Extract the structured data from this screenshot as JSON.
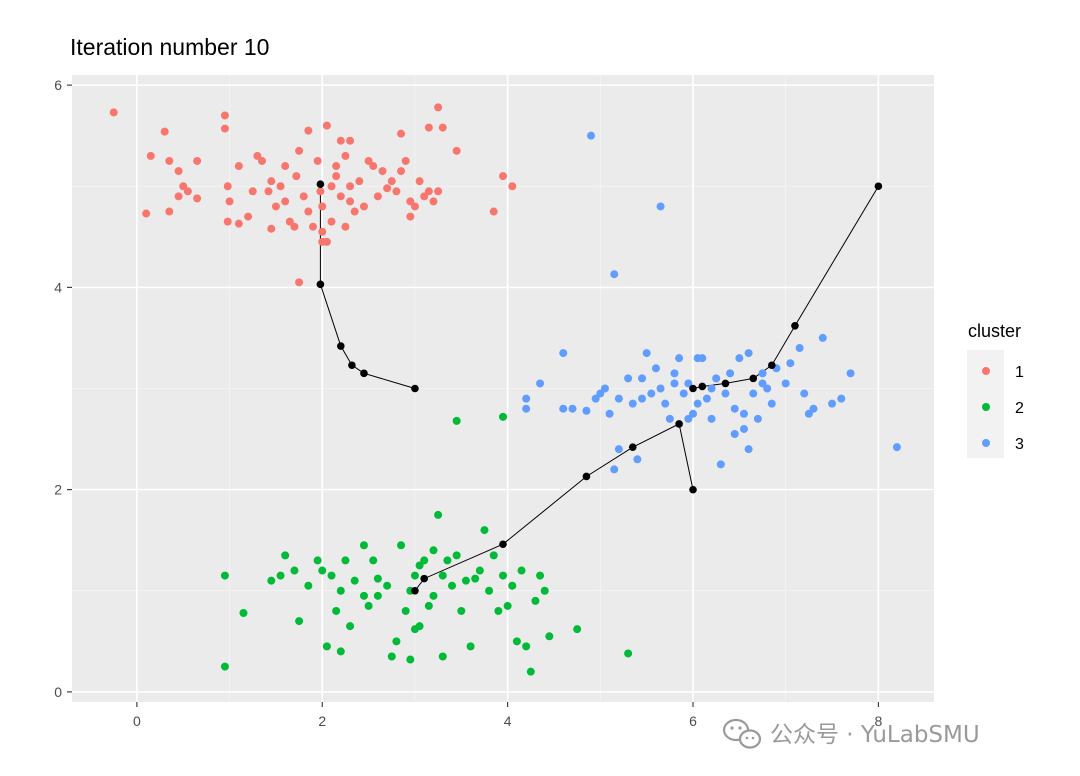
{
  "chart_data": {
    "type": "scatter",
    "title": "Iteration number 10",
    "xlabel": "",
    "ylabel": "",
    "xlim": [
      -0.7,
      8.6
    ],
    "ylim": [
      -0.1,
      6.1
    ],
    "xticks": [
      0,
      2,
      4,
      6,
      8
    ],
    "yticks": [
      0,
      2,
      4,
      6
    ],
    "xtick_labels": [
      "0",
      "2",
      "4",
      "6",
      "8"
    ],
    "ytick_labels": [
      "0",
      "2",
      "4",
      "6"
    ],
    "grid": true,
    "panel_background": "#ebebeb",
    "legend": {
      "title": "cluster",
      "position": "right",
      "entries": [
        {
          "label": "1",
          "color": "#F8766D"
        },
        {
          "label": "2",
          "color": "#00BA38"
        },
        {
          "label": "3",
          "color": "#619CFF"
        }
      ]
    },
    "series": [
      {
        "name": "1",
        "color": "#F8766D",
        "points": [
          [
            -0.25,
            5.73
          ],
          [
            0.95,
            5.7
          ],
          [
            0.95,
            5.57
          ],
          [
            0.3,
            5.54
          ],
          [
            1.85,
            5.55
          ],
          [
            2.05,
            5.6
          ],
          [
            3.25,
            5.78
          ],
          [
            3.3,
            5.58
          ],
          [
            3.15,
            5.58
          ],
          [
            2.85,
            5.52
          ],
          [
            0.15,
            5.3
          ],
          [
            0.35,
            5.25
          ],
          [
            0.45,
            5.15
          ],
          [
            0.65,
            5.25
          ],
          [
            0.5,
            5.0
          ],
          [
            0.45,
            4.9
          ],
          [
            0.35,
            4.75
          ],
          [
            0.1,
            4.73
          ],
          [
            0.65,
            4.88
          ],
          [
            0.55,
            4.95
          ],
          [
            0.98,
            5.0
          ],
          [
            1.0,
            4.85
          ],
          [
            0.98,
            4.65
          ],
          [
            1.1,
            5.2
          ],
          [
            1.25,
            4.95
          ],
          [
            1.2,
            4.7
          ],
          [
            1.1,
            4.63
          ],
          [
            1.3,
            5.3
          ],
          [
            1.35,
            5.25
          ],
          [
            1.45,
            5.05
          ],
          [
            1.42,
            4.95
          ],
          [
            1.5,
            4.8
          ],
          [
            1.45,
            4.58
          ],
          [
            1.6,
            5.2
          ],
          [
            1.55,
            5.0
          ],
          [
            1.6,
            4.85
          ],
          [
            1.65,
            4.65
          ],
          [
            1.7,
            4.6
          ],
          [
            1.75,
            5.35
          ],
          [
            1.72,
            5.1
          ],
          [
            1.8,
            4.9
          ],
          [
            1.85,
            4.75
          ],
          [
            1.9,
            4.6
          ],
          [
            1.95,
            5.25
          ],
          [
            1.98,
            4.95
          ],
          [
            2.0,
            4.8
          ],
          [
            2.0,
            4.45
          ],
          [
            2.05,
            4.45
          ],
          [
            2.1,
            4.65
          ],
          [
            2.1,
            5.0
          ],
          [
            2.15,
            5.1
          ],
          [
            2.2,
            5.45
          ],
          [
            2.15,
            5.2
          ],
          [
            2.2,
            4.9
          ],
          [
            2.25,
            5.3
          ],
          [
            2.3,
            5.0
          ],
          [
            2.3,
            4.85
          ],
          [
            2.35,
            4.75
          ],
          [
            2.25,
            4.6
          ],
          [
            2.4,
            5.05
          ],
          [
            2.45,
            4.8
          ],
          [
            2.5,
            5.25
          ],
          [
            2.55,
            5.2
          ],
          [
            2.6,
            4.9
          ],
          [
            2.65,
            5.15
          ],
          [
            2.75,
            5.05
          ],
          [
            2.8,
            4.95
          ],
          [
            2.85,
            5.15
          ],
          [
            2.9,
            5.25
          ],
          [
            2.95,
            4.7
          ],
          [
            3.0,
            4.8
          ],
          [
            3.05,
            5.05
          ],
          [
            3.1,
            4.9
          ],
          [
            3.15,
            4.95
          ],
          [
            3.2,
            4.85
          ],
          [
            3.25,
            4.95
          ],
          [
            3.45,
            5.35
          ],
          [
            3.85,
            4.75
          ],
          [
            3.95,
            5.1
          ],
          [
            4.05,
            5.0
          ],
          [
            1.75,
            4.05
          ],
          [
            2.0,
            4.55
          ],
          [
            2.3,
            5.45
          ],
          [
            2.7,
            4.98
          ],
          [
            2.95,
            4.85
          ]
        ]
      },
      {
        "name": "2",
        "color": "#00BA38",
        "points": [
          [
            0.95,
            0.25
          ],
          [
            0.95,
            1.15
          ],
          [
            1.15,
            0.78
          ],
          [
            1.45,
            1.1
          ],
          [
            1.55,
            1.15
          ],
          [
            1.6,
            1.35
          ],
          [
            1.7,
            1.2
          ],
          [
            1.75,
            0.7
          ],
          [
            1.85,
            1.05
          ],
          [
            1.95,
            1.3
          ],
          [
            2.0,
            1.2
          ],
          [
            2.05,
            0.45
          ],
          [
            2.1,
            1.15
          ],
          [
            2.15,
            0.8
          ],
          [
            2.2,
            1.0
          ],
          [
            2.2,
            0.4
          ],
          [
            2.25,
            1.3
          ],
          [
            2.3,
            0.65
          ],
          [
            2.35,
            1.1
          ],
          [
            2.45,
            1.45
          ],
          [
            2.45,
            0.95
          ],
          [
            2.5,
            0.85
          ],
          [
            2.55,
            1.3
          ],
          [
            2.6,
            0.95
          ],
          [
            2.7,
            1.05
          ],
          [
            2.75,
            0.35
          ],
          [
            2.8,
            0.5
          ],
          [
            2.85,
            1.45
          ],
          [
            2.9,
            0.8
          ],
          [
            2.95,
            1.0
          ],
          [
            3.0,
            1.15
          ],
          [
            3.05,
            0.65
          ],
          [
            3.1,
            1.3
          ],
          [
            3.15,
            0.85
          ],
          [
            3.2,
            1.4
          ],
          [
            3.2,
            0.95
          ],
          [
            3.25,
            1.75
          ],
          [
            3.3,
            1.15
          ],
          [
            3.35,
            1.3
          ],
          [
            3.4,
            1.05
          ],
          [
            3.45,
            1.35
          ],
          [
            3.5,
            0.8
          ],
          [
            3.55,
            1.1
          ],
          [
            3.6,
            0.45
          ],
          [
            3.7,
            1.2
          ],
          [
            3.75,
            1.6
          ],
          [
            3.8,
            1.0
          ],
          [
            3.85,
            1.35
          ],
          [
            3.9,
            0.8
          ],
          [
            3.95,
            1.15
          ],
          [
            4.0,
            0.85
          ],
          [
            4.05,
            1.05
          ],
          [
            4.1,
            0.5
          ],
          [
            4.15,
            1.2
          ],
          [
            4.2,
            0.45
          ],
          [
            4.25,
            0.2
          ],
          [
            4.3,
            0.9
          ],
          [
            4.35,
            1.15
          ],
          [
            4.4,
            1.0
          ],
          [
            4.45,
            0.55
          ],
          [
            4.75,
            0.62
          ],
          [
            5.3,
            0.38
          ],
          [
            3.3,
            0.35
          ],
          [
            3.0,
            0.62
          ],
          [
            2.95,
            0.32
          ],
          [
            3.45,
            2.68
          ],
          [
            3.95,
            2.72
          ],
          [
            3.05,
            1.25
          ],
          [
            2.6,
            1.12
          ],
          [
            3.65,
            1.12
          ]
        ]
      },
      {
        "name": "3",
        "color": "#619CFF",
        "points": [
          [
            4.9,
            5.5
          ],
          [
            5.65,
            4.8
          ],
          [
            5.15,
            4.13
          ],
          [
            4.2,
            2.9
          ],
          [
            4.2,
            2.8
          ],
          [
            4.35,
            3.05
          ],
          [
            4.6,
            3.35
          ],
          [
            4.6,
            2.8
          ],
          [
            4.7,
            2.8
          ],
          [
            4.85,
            2.78
          ],
          [
            4.95,
            2.9
          ],
          [
            5.05,
            3.0
          ],
          [
            5.1,
            2.75
          ],
          [
            5.15,
            2.2
          ],
          [
            5.2,
            2.9
          ],
          [
            5.3,
            3.1
          ],
          [
            5.35,
            2.85
          ],
          [
            5.4,
            2.3
          ],
          [
            5.45,
            2.9
          ],
          [
            5.5,
            3.35
          ],
          [
            5.55,
            2.95
          ],
          [
            5.6,
            3.2
          ],
          [
            5.65,
            3.0
          ],
          [
            5.7,
            2.85
          ],
          [
            5.75,
            2.7
          ],
          [
            5.8,
            3.15
          ],
          [
            5.85,
            3.3
          ],
          [
            5.9,
            2.95
          ],
          [
            5.95,
            3.05
          ],
          [
            6.0,
            2.75
          ],
          [
            6.05,
            2.85
          ],
          [
            6.1,
            3.3
          ],
          [
            6.15,
            2.9
          ],
          [
            6.2,
            2.7
          ],
          [
            6.25,
            3.1
          ],
          [
            6.3,
            2.25
          ],
          [
            6.35,
            2.95
          ],
          [
            6.4,
            3.15
          ],
          [
            6.45,
            2.8
          ],
          [
            6.5,
            3.3
          ],
          [
            6.55,
            2.6
          ],
          [
            6.6,
            3.35
          ],
          [
            6.65,
            2.95
          ],
          [
            6.7,
            2.7
          ],
          [
            6.75,
            3.15
          ],
          [
            6.8,
            3.0
          ],
          [
            6.85,
            2.85
          ],
          [
            6.9,
            3.2
          ],
          [
            7.0,
            3.05
          ],
          [
            7.05,
            3.25
          ],
          [
            7.15,
            3.4
          ],
          [
            7.2,
            2.95
          ],
          [
            7.25,
            2.75
          ],
          [
            7.3,
            2.8
          ],
          [
            7.4,
            3.5
          ],
          [
            7.5,
            2.85
          ],
          [
            7.6,
            2.9
          ],
          [
            7.7,
            3.15
          ],
          [
            8.2,
            2.42
          ],
          [
            5.2,
            2.4
          ],
          [
            6.6,
            2.4
          ],
          [
            6.55,
            2.75
          ],
          [
            5.95,
            2.7
          ],
          [
            6.45,
            2.55
          ],
          [
            5.45,
            3.1
          ],
          [
            6.75,
            3.05
          ],
          [
            5.0,
            2.95
          ],
          [
            6.05,
            3.3
          ],
          [
            6.2,
            3.0
          ],
          [
            5.8,
            3.05
          ]
        ]
      }
    ],
    "centroid_paths": [
      {
        "color": "#000000",
        "points": [
          [
            1.98,
            5.02
          ],
          [
            1.98,
            4.03
          ],
          [
            2.2,
            3.42
          ],
          [
            2.32,
            3.23
          ],
          [
            2.45,
            3.15
          ],
          [
            3.0,
            3.0
          ]
        ]
      },
      {
        "color": "#000000",
        "points": [
          [
            6.0,
            2.0
          ],
          [
            5.85,
            2.65
          ],
          [
            5.35,
            2.42
          ],
          [
            4.85,
            2.13
          ],
          [
            3.95,
            1.46
          ],
          [
            3.1,
            1.12
          ],
          [
            3.0,
            1.0
          ]
        ]
      },
      {
        "color": "#000000",
        "points": [
          [
            8.0,
            5.0
          ],
          [
            7.1,
            3.62
          ],
          [
            6.85,
            3.23
          ],
          [
            6.65,
            3.1
          ],
          [
            6.35,
            3.05
          ],
          [
            6.1,
            3.02
          ],
          [
            6.0,
            3.0
          ]
        ]
      }
    ]
  },
  "watermark": {
    "text": "公众号 · YuLabSMU",
    "icon": "wechat-icon"
  }
}
